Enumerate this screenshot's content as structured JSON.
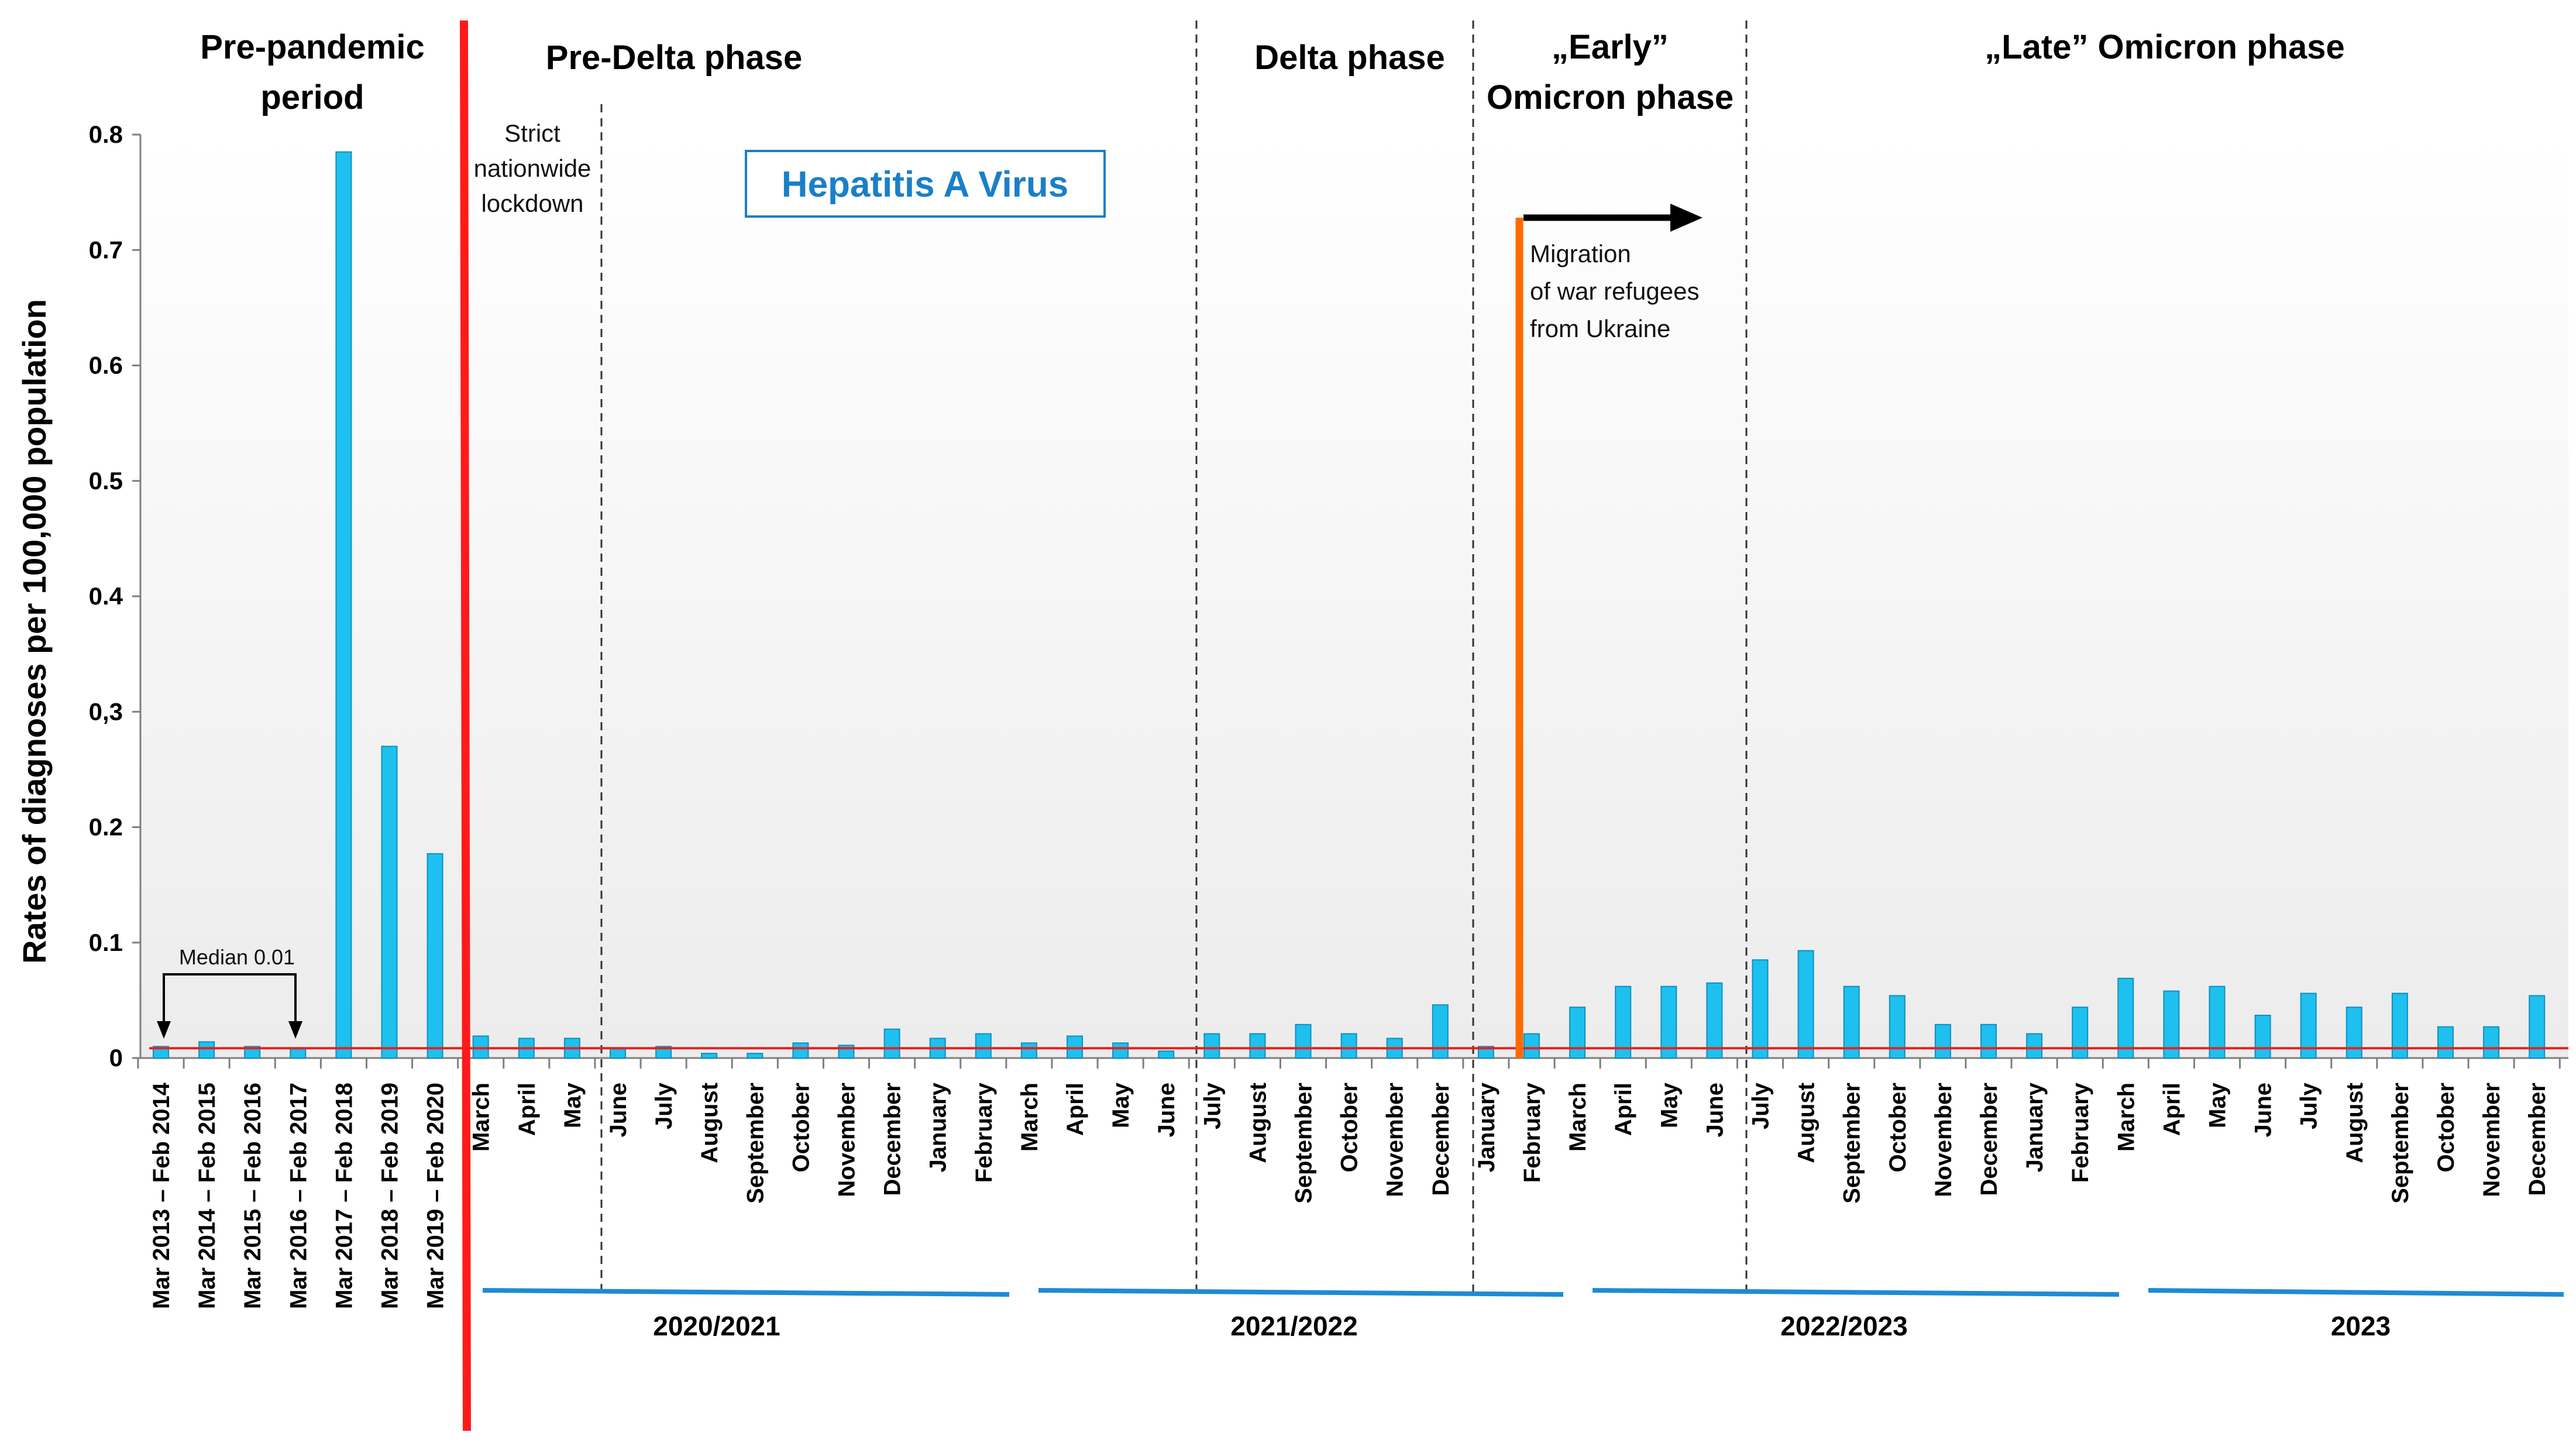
{
  "chart_data": {
    "type": "bar",
    "title": "Hepatitis  A Virus",
    "ylabel": "Rates of diagnoses per 100,000 population",
    "xlabel": "",
    "ylim": [
      0,
      0.8
    ],
    "yticks": [
      "0",
      "0.1",
      "0.2",
      "0,3",
      "0.4",
      "0.5",
      "0.6",
      "0.7",
      "0.8"
    ],
    "grid": false,
    "bar_color": "#1ec0ef",
    "bar_edge_color": "#0f8fbf",
    "median_line_color": "#e8201c",
    "median_line_value": 0.01,
    "categories": [
      "Mar 2013  – Feb 2014",
      "Mar 2014  – Feb 2015",
      "Mar 2015  – Feb 2016",
      "Mar 2016  – Feb 2017",
      "Mar 2017  – Feb 2018",
      "Mar 2018  – Feb 2019",
      "Mar 2019  – Feb 2020",
      "March",
      "April",
      "May",
      "June",
      "July",
      "August",
      "September",
      "October",
      "November",
      "December",
      "January",
      "February",
      "March",
      "April",
      "May",
      "June",
      "July",
      "August",
      "September",
      "October",
      "November",
      "December",
      "January",
      "February",
      "March",
      "April",
      "May",
      "June",
      "July",
      "August",
      "September",
      "October",
      "November",
      "December",
      "January",
      "February",
      "March",
      "April",
      "May",
      "June",
      "July",
      "August",
      "September",
      "October",
      "November",
      "December"
    ],
    "values": [
      0.01,
      0.014,
      0.01,
      0.008,
      0.785,
      0.27,
      0.177,
      0.019,
      0.017,
      0.017,
      0.008,
      0.01,
      0.004,
      0.004,
      0.013,
      0.011,
      0.025,
      0.017,
      0.021,
      0.013,
      0.019,
      0.013,
      0.006,
      0.021,
      0.021,
      0.029,
      0.021,
      0.017,
      0.046,
      0.01,
      0.021,
      0.044,
      0.062,
      0.062,
      0.065,
      0.085,
      0.093,
      0.062,
      0.054,
      0.029,
      0.029,
      0.021,
      0.044,
      0.069,
      0.058,
      0.062,
      0.037,
      0.056,
      0.044,
      0.056,
      0.027,
      0.027,
      0.054
    ],
    "phases": [
      "Pre-pandemic period",
      "Pre-Delta phase",
      "Delta phase",
      "„Early” Omicron phase",
      "„Late” Omicron phase"
    ],
    "seasons": [
      "2020/2021",
      "2021/2022",
      "2022/2023",
      "2023"
    ],
    "annotations": {
      "median": "Median 0.01",
      "lockdown": [
        "Strict",
        "nationwide",
        "lockdown"
      ],
      "migration": [
        "Migration",
        "of war refugees",
        "from Ukraine"
      ]
    }
  }
}
